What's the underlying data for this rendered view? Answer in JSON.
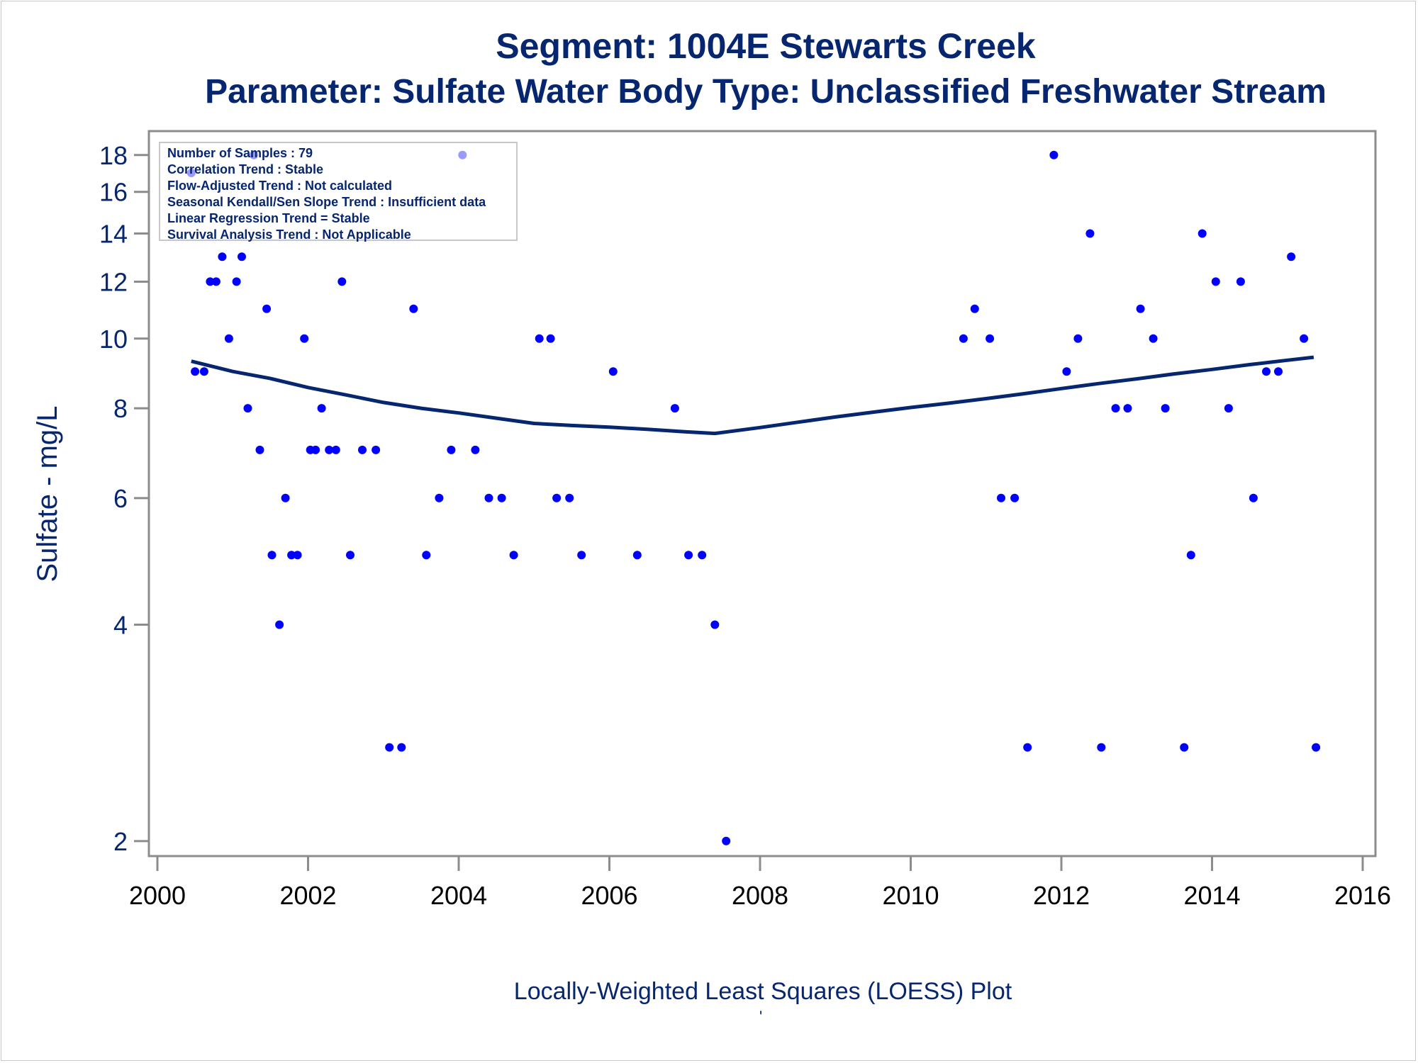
{
  "titles": {
    "line1": "Segment: 1004E  Stewarts Creek",
    "line2": "Parameter: Sulfate   Water Body Type: Unclassified Freshwater Stream"
  },
  "stats": [
    "Number of Samples : 79",
    "Correlation Trend : Stable",
    "Flow-Adjusted Trend : Not calculated",
    "Seasonal Kendall/Sen Slope Trend : Insufficient data",
    "Linear Regression Trend = Stable",
    "Survival Analysis Trend : Not Applicable"
  ],
  "footnote": "Locally-Weighted Least Squares (LOESS) Plot",
  "footmark": "'",
  "colors": {
    "points": "#0000ff",
    "line": "#06266f",
    "text": "#06266f",
    "axis": "#8c8c8c"
  },
  "chart_data": {
    "type": "scatter",
    "ylabel": "Sulfate - mg/L",
    "xlabel": "",
    "yscale": "log",
    "xlim": [
      2000,
      2016
    ],
    "ylim": [
      1.95,
      18.7
    ],
    "xticks": [
      2000,
      2002,
      2004,
      2006,
      2008,
      2010,
      2012,
      2014,
      2016
    ],
    "yticks": [
      2,
      4,
      6,
      8,
      10,
      12,
      14,
      16,
      18
    ],
    "grid": false,
    "points": [
      [
        2000.45,
        17
      ],
      [
        2000.5,
        9
      ],
      [
        2000.62,
        9
      ],
      [
        2000.7,
        12
      ],
      [
        2000.78,
        12
      ],
      [
        2000.86,
        13
      ],
      [
        2000.95,
        10
      ],
      [
        2001.05,
        12
      ],
      [
        2001.12,
        13
      ],
      [
        2001.2,
        8
      ],
      [
        2001.28,
        18
      ],
      [
        2001.36,
        7
      ],
      [
        2001.45,
        11
      ],
      [
        2001.52,
        5
      ],
      [
        2001.62,
        4
      ],
      [
        2001.7,
        6
      ],
      [
        2001.78,
        5
      ],
      [
        2001.86,
        5
      ],
      [
        2001.95,
        10
      ],
      [
        2002.03,
        7
      ],
      [
        2002.1,
        7
      ],
      [
        2002.18,
        8
      ],
      [
        2002.28,
        7
      ],
      [
        2002.37,
        7
      ],
      [
        2002.45,
        12
      ],
      [
        2002.56,
        5
      ],
      [
        2002.72,
        7
      ],
      [
        2002.9,
        7
      ],
      [
        2003.08,
        2.7
      ],
      [
        2003.24,
        2.7
      ],
      [
        2003.4,
        11
      ],
      [
        2003.57,
        5
      ],
      [
        2003.74,
        6
      ],
      [
        2003.9,
        7
      ],
      [
        2004.05,
        18
      ],
      [
        2004.22,
        7
      ],
      [
        2004.4,
        6
      ],
      [
        2004.57,
        6
      ],
      [
        2004.73,
        5
      ],
      [
        2005.07,
        10
      ],
      [
        2005.22,
        10
      ],
      [
        2005.3,
        6
      ],
      [
        2005.47,
        6
      ],
      [
        2005.63,
        5
      ],
      [
        2006.05,
        9
      ],
      [
        2006.37,
        5
      ],
      [
        2006.87,
        8
      ],
      [
        2007.05,
        5
      ],
      [
        2007.23,
        5
      ],
      [
        2007.4,
        4
      ],
      [
        2007.55,
        2
      ],
      [
        2010.7,
        10
      ],
      [
        2010.85,
        11
      ],
      [
        2011.05,
        10
      ],
      [
        2011.2,
        6
      ],
      [
        2011.38,
        6
      ],
      [
        2011.55,
        2.7
      ],
      [
        2011.9,
        18
      ],
      [
        2012.07,
        9
      ],
      [
        2012.22,
        10
      ],
      [
        2012.38,
        14
      ],
      [
        2012.53,
        2.7
      ],
      [
        2012.72,
        8
      ],
      [
        2012.88,
        8
      ],
      [
        2013.05,
        11
      ],
      [
        2013.22,
        10
      ],
      [
        2013.38,
        8
      ],
      [
        2013.63,
        2.7
      ],
      [
        2013.72,
        5
      ],
      [
        2013.87,
        14
      ],
      [
        2014.05,
        12
      ],
      [
        2014.22,
        8
      ],
      [
        2014.38,
        12
      ],
      [
        2014.55,
        6
      ],
      [
        2014.72,
        9
      ],
      [
        2014.88,
        9
      ],
      [
        2015.05,
        13
      ],
      [
        2015.22,
        10
      ],
      [
        2015.38,
        2.7
      ]
    ],
    "loess": [
      [
        2000.45,
        9.3
      ],
      [
        2001.0,
        9.0
      ],
      [
        2001.5,
        8.8
      ],
      [
        2002.0,
        8.55
      ],
      [
        2002.5,
        8.35
      ],
      [
        2003.0,
        8.15
      ],
      [
        2003.5,
        8.0
      ],
      [
        2004.0,
        7.88
      ],
      [
        2004.5,
        7.75
      ],
      [
        2005.0,
        7.62
      ],
      [
        2005.5,
        7.57
      ],
      [
        2006.0,
        7.53
      ],
      [
        2006.5,
        7.48
      ],
      [
        2007.0,
        7.42
      ],
      [
        2007.4,
        7.38
      ],
      [
        2008.0,
        7.52
      ],
      [
        2008.5,
        7.65
      ],
      [
        2009.0,
        7.78
      ],
      [
        2009.5,
        7.9
      ],
      [
        2010.0,
        8.02
      ],
      [
        2010.5,
        8.13
      ],
      [
        2011.0,
        8.25
      ],
      [
        2011.5,
        8.38
      ],
      [
        2012.0,
        8.52
      ],
      [
        2012.5,
        8.66
      ],
      [
        2013.0,
        8.79
      ],
      [
        2013.5,
        8.93
      ],
      [
        2014.0,
        9.06
      ],
      [
        2014.5,
        9.2
      ],
      [
        2015.0,
        9.33
      ],
      [
        2015.35,
        9.42
      ]
    ]
  }
}
